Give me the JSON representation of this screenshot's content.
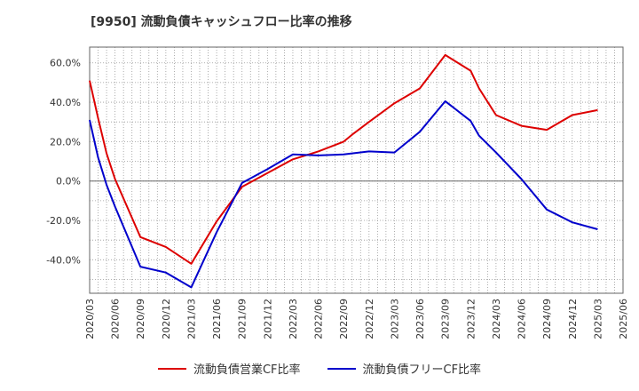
{
  "title": "[9950]  流動負債キャッシュフロー比率の推移",
  "chart_data": {
    "type": "line",
    "title": "[9950]  流動負債キャッシュフロー比率の推移",
    "xlabel": "",
    "ylabel": "",
    "ylim": [
      -57,
      68
    ],
    "grid": true,
    "legend_position": "bottom",
    "y_ticks": [
      60,
      40,
      20,
      0,
      -20,
      -40
    ],
    "y_tick_labels": [
      "60.0%",
      "40.0%",
      "20.0%",
      "0.0%",
      "-20.0%",
      "-40.0%"
    ],
    "x_tick_labels": [
      "2020/03",
      "2020/06",
      "2020/09",
      "2020/12",
      "2021/03",
      "2021/06",
      "2021/09",
      "2021/12",
      "2022/03",
      "2022/06",
      "2022/09",
      "2022/12",
      "2023/03",
      "2023/06",
      "2023/09",
      "2023/12",
      "2024/03",
      "2024/06",
      "2024/09",
      "2024/12",
      "2025/03",
      "2025/06"
    ],
    "series": [
      {
        "name": "流動負債営業CF比率",
        "color": "#dd0000",
        "x": [
          "2020/03",
          "2020/04",
          "2020/05",
          "2020/06",
          "2020/09",
          "2020/12",
          "2021/03",
          "2021/06",
          "2021/09",
          "2021/12",
          "2022/03",
          "2022/06",
          "2022/09",
          "2022/10",
          "2022/12",
          "2023/03",
          "2023/06",
          "2023/09",
          "2023/12",
          "2024/01",
          "2024/03",
          "2024/06",
          "2024/09",
          "2024/12",
          "2025/03"
        ],
        "values": [
          51,
          32,
          14,
          1,
          -28.5,
          -33.5,
          -42,
          -20.5,
          -3,
          4,
          11,
          15,
          20,
          23.5,
          30,
          39.5,
          47,
          64,
          56,
          47,
          33.5,
          28,
          26,
          33.5,
          36
        ]
      },
      {
        "name": "流動負債フリーCF比率",
        "color": "#0000cc",
        "x": [
          "2020/03",
          "2020/04",
          "2020/05",
          "2020/06",
          "2020/09",
          "2020/12",
          "2021/03",
          "2021/06",
          "2021/09",
          "2021/12",
          "2022/03",
          "2022/06",
          "2022/09",
          "2022/12",
          "2023/03",
          "2023/06",
          "2023/09",
          "2023/12",
          "2024/01",
          "2024/03",
          "2024/06",
          "2024/09",
          "2024/12",
          "2025/03"
        ],
        "values": [
          31,
          12,
          -2,
          -13,
          -43.5,
          -46.5,
          -54,
          -26,
          -1,
          6,
          13.5,
          13,
          13.5,
          15,
          14.5,
          25,
          40.5,
          30.5,
          23,
          14.5,
          1,
          -14.5,
          -21,
          -24.5
        ]
      }
    ]
  }
}
